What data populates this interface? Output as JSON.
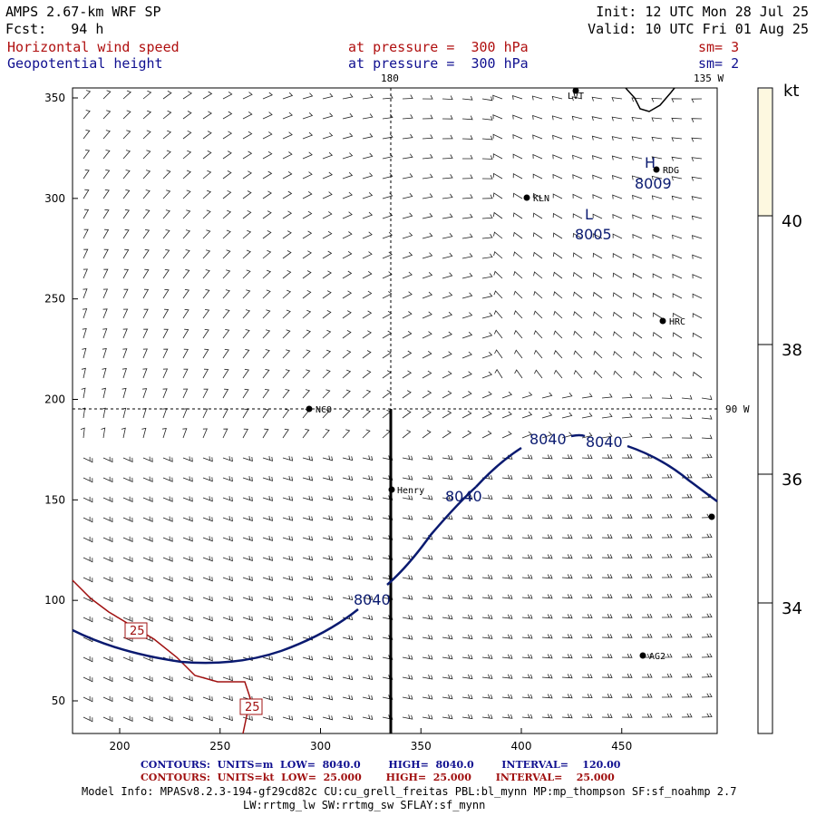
{
  "header": {
    "model": "AMPS 2.67-km WRF SP",
    "forecast": "Fcst:   94 h",
    "init": "Init: 12 UTC Mon 28 Jul 25",
    "valid": "Valid: 10 UTC Fri 01 Aug 25",
    "field1": "Horizontal wind speed",
    "field1_level": "at pressure =  300 hPa",
    "field1_sm": "sm= 3",
    "field2": "Geopotential height",
    "field2_level": "at pressure =  300 hPa",
    "field2_sm": "sm= 2"
  },
  "map": {
    "lon_labels": [
      "180",
      "135 W",
      "90 W"
    ],
    "x_ticks": [
      "200",
      "250",
      "300",
      "350",
      "400",
      "450"
    ],
    "y_ticks": [
      "50",
      "100",
      "150",
      "200",
      "250",
      "300",
      "350"
    ],
    "stations": [
      "LVT",
      "RDG",
      "KLN",
      "HRC",
      "NCO",
      "Henry",
      "AG2"
    ],
    "highs_lows": [
      {
        "symbol": "H",
        "value": "8009"
      },
      {
        "symbol": "L",
        "value": "8005"
      }
    ],
    "height_contour_labels": [
      "8040",
      "8040",
      "8040",
      "8040"
    ],
    "speed_contour_labels": [
      "25",
      "25"
    ]
  },
  "colorbar": {
    "unit": "kt",
    "labels": [
      "40",
      "38",
      "36",
      "34"
    ],
    "top_color": "#fdf8e0"
  },
  "footer": {
    "line1_prefix": "CONTOURS:",
    "line1_units": "UNITS=m",
    "line1_low": "LOW=  8040.0",
    "line1_high": "HIGH=  8040.0",
    "line1_interval": "INTERVAL=    120.00",
    "line2_prefix": "CONTOURS:",
    "line2_units": "UNITS=kt",
    "line2_low": "LOW=  25.000",
    "line2_high": "HIGH=  25.000",
    "line2_interval": "INTERVAL=    25.000",
    "model_info": "Model Info: MPASv8.2.3-194-gf29cd82c CU:cu_grell_freitas PBL:bl_mynn MP:mp_thompson SF:sf_noahmp 2.7",
    "model_info2": "LW:rrtmg_lw SW:rrtmg_sw SFLAY:sf_mynn"
  }
}
